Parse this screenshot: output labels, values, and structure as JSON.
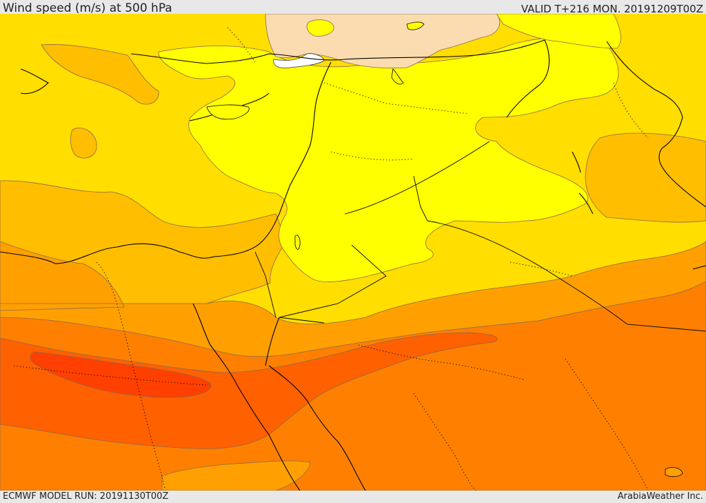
{
  "header": {
    "title": "Wind speed (m/s) at 500 hPa",
    "valid": "VALID T+216 MON. 20191209T00Z"
  },
  "footer": {
    "model_run": "ECMWF MODEL RUN: 20191130T00Z",
    "credit": "ArabiaWeather Inc."
  },
  "colors": {
    "peach": "#fbdcb0",
    "yellow_light": "#ffff00",
    "yellow": "#ffde00",
    "amber": "#ffbe00",
    "orange_light": "#ffa000",
    "orange": "#ff8000",
    "orange_dark": "#ff6000",
    "red_orange": "#ff4000",
    "white": "#ffffff"
  }
}
